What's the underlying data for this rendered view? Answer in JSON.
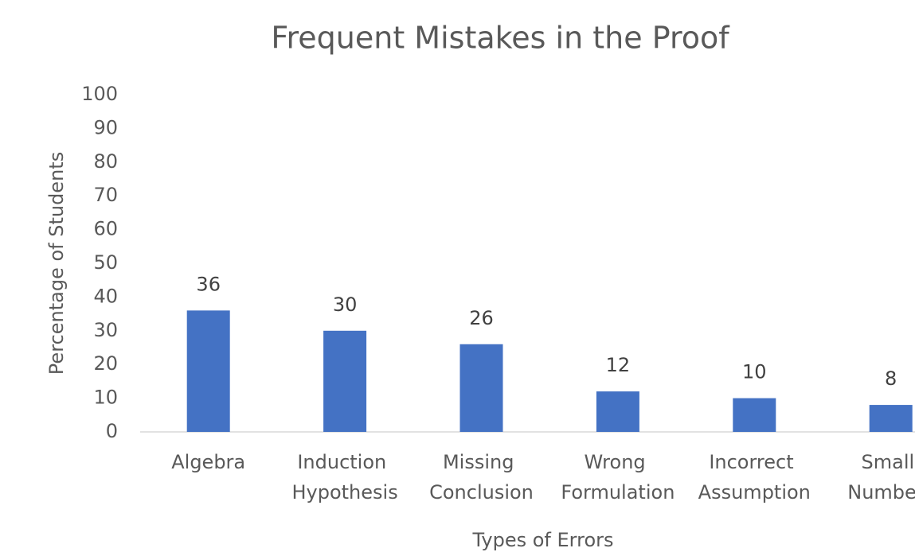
{
  "chart_data": {
    "type": "bar",
    "title": "Frequent Mistakes in the Proof",
    "x_label": "Types of Errors",
    "y_label": "Percentage of Students",
    "categories": [
      "Algebra",
      "Induction Hypothesis",
      "Missing Conclusion",
      "Wrong Formulation",
      "Incorrect Assumption",
      "Small Numbers"
    ],
    "values": [
      36,
      30,
      26,
      12,
      10,
      8
    ],
    "color": "#4472c4",
    "ylim": [
      0,
      100
    ],
    "yticks": [
      0,
      10,
      20,
      30,
      40,
      50,
      60,
      70,
      80,
      90,
      100
    ],
    "grid": false
  }
}
